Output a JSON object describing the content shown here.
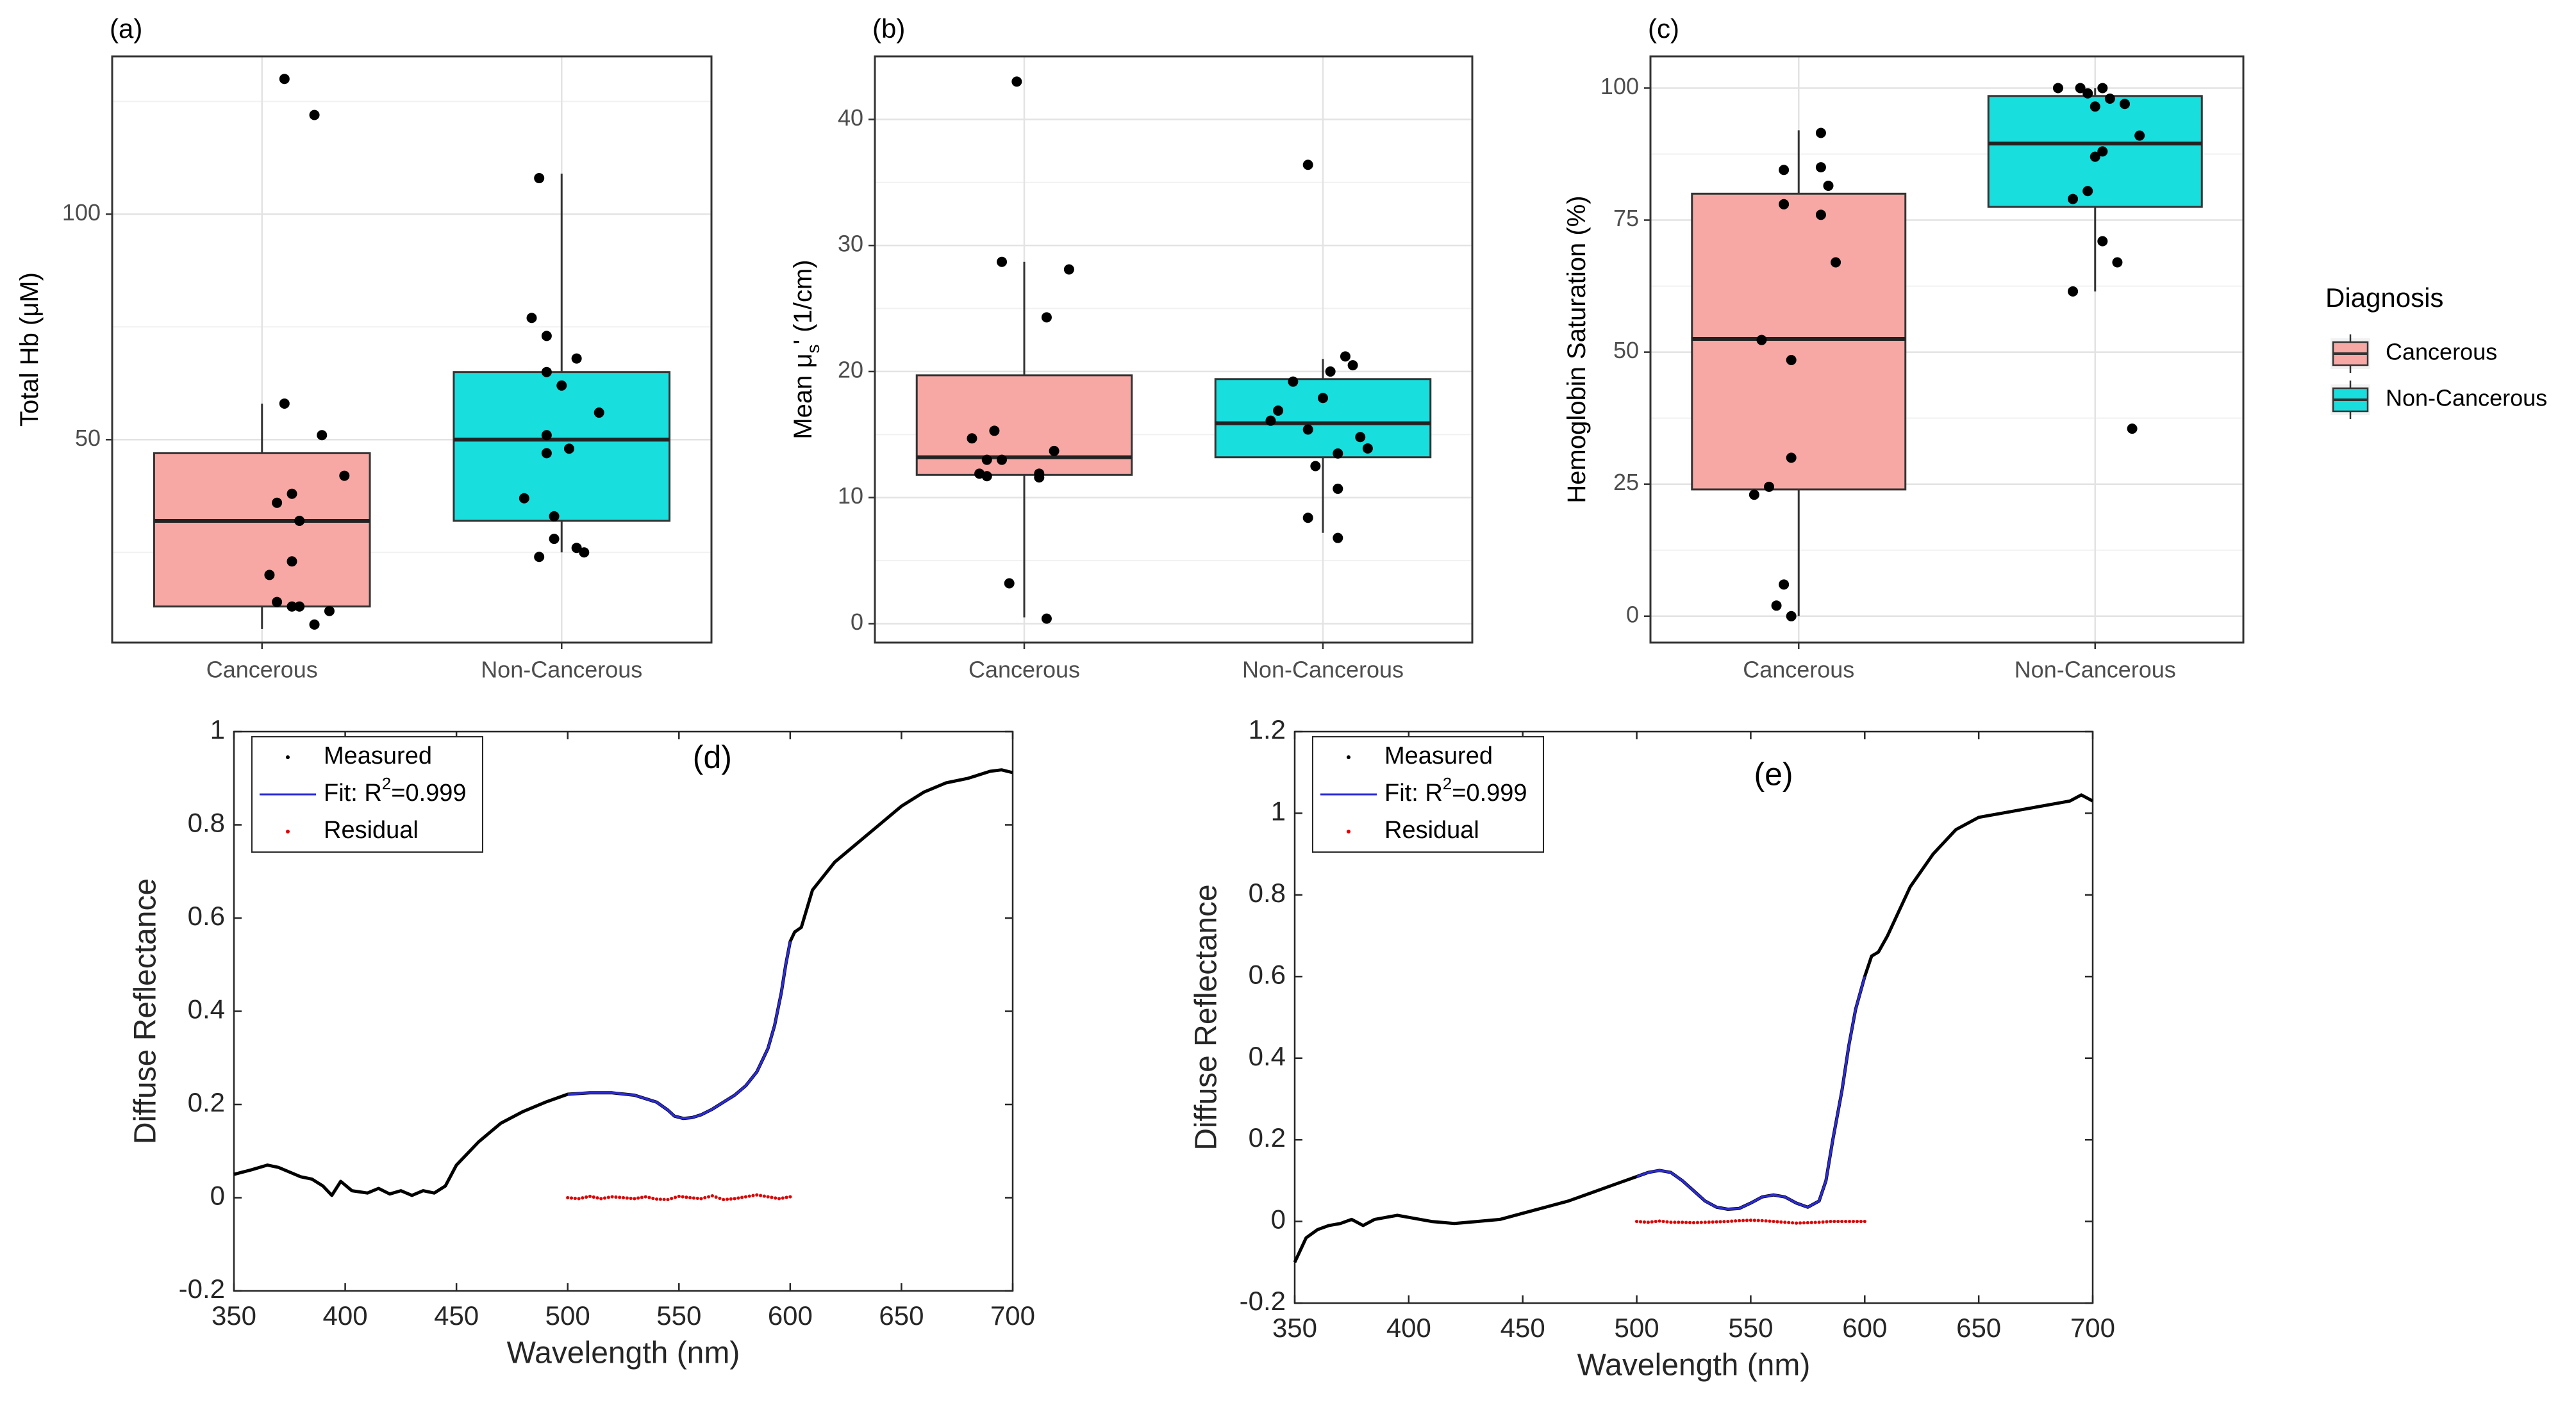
{
  "legend": {
    "title": "Diagnosis",
    "items": [
      {
        "label": "Cancerous",
        "color": "#F8A8A4"
      },
      {
        "label": "Non-Cancerous",
        "color": "#19DEDE"
      }
    ]
  },
  "chart_data": [
    {
      "type": "box",
      "panel": "(a)",
      "title": "(a)",
      "ylabel_main": "Total Hb (",
      "ylabel_unit": "μM",
      "ylabel_end": ")",
      "categories": [
        "Cancerous",
        "Non-Cancerous"
      ],
      "ylim": [
        5,
        135
      ],
      "yticks": [
        50,
        100
      ],
      "boxes": [
        {
          "q1": 13,
          "median": 32,
          "q3": 47,
          "lower": 8,
          "upper": 58
        },
        {
          "q1": 32,
          "median": 50,
          "q3": 65,
          "lower": 25,
          "upper": 109
        }
      ],
      "points": [
        [
          [
            0.15,
            130
          ],
          [
            0.35,
            122
          ],
          [
            0.15,
            58
          ],
          [
            0.4,
            51
          ],
          [
            0.55,
            42
          ],
          [
            0.2,
            38
          ],
          [
            0.1,
            36
          ],
          [
            0.25,
            32
          ],
          [
            0.2,
            23
          ],
          [
            0.05,
            20
          ],
          [
            0.1,
            14
          ],
          [
            0.2,
            13
          ],
          [
            0.25,
            13
          ],
          [
            0.45,
            12
          ],
          [
            0.35,
            9
          ]
        ],
        [
          [
            -0.15,
            108
          ],
          [
            -0.2,
            77
          ],
          [
            -0.1,
            73
          ],
          [
            0.1,
            68
          ],
          [
            -0.1,
            65
          ],
          [
            0,
            62
          ],
          [
            0.25,
            56
          ],
          [
            -0.1,
            51
          ],
          [
            0.05,
            48
          ],
          [
            -0.1,
            47
          ],
          [
            -0.25,
            37
          ],
          [
            -0.05,
            33
          ],
          [
            -0.05,
            28
          ],
          [
            0.1,
            26
          ],
          [
            0.15,
            25
          ],
          [
            -0.15,
            24
          ]
        ]
      ]
    },
    {
      "type": "box",
      "panel": "(b)",
      "title": "(b)",
      "ylabel_main": "Mean μ",
      "ylabel_sub": "s",
      "ylabel_end": "' (1/cm)",
      "categories": [
        "Cancerous",
        "Non-Cancerous"
      ],
      "ylim": [
        -1.5,
        45
      ],
      "yticks": [
        0,
        10,
        20,
        30,
        40
      ],
      "boxes": [
        {
          "q1": 11.8,
          "median": 13.2,
          "q3": 19.7,
          "lower": 0.5,
          "upper": 28.7
        },
        {
          "q1": 13.2,
          "median": 15.9,
          "q3": 19.4,
          "lower": 7.2,
          "upper": 21.0
        }
      ],
      "points": [
        [
          [
            -0.05,
            43
          ],
          [
            -0.15,
            28.7
          ],
          [
            0.3,
            28.1
          ],
          [
            0.15,
            24.3
          ],
          [
            -0.2,
            15.3
          ],
          [
            -0.35,
            14.7
          ],
          [
            -0.25,
            13
          ],
          [
            -0.15,
            13
          ],
          [
            0.2,
            13.7
          ],
          [
            0.1,
            11.9
          ],
          [
            -0.3,
            11.9
          ],
          [
            -0.25,
            11.7
          ],
          [
            0.1,
            11.6
          ],
          [
            -0.1,
            3.2
          ],
          [
            0.15,
            0.4
          ]
        ],
        [
          [
            -0.1,
            36.4
          ],
          [
            0.15,
            21.2
          ],
          [
            0.2,
            20.5
          ],
          [
            0.05,
            20.0
          ],
          [
            -0.2,
            19.2
          ],
          [
            0,
            17.9
          ],
          [
            -0.3,
            16.9
          ],
          [
            -0.35,
            16.1
          ],
          [
            -0.1,
            15.4
          ],
          [
            0.25,
            14.8
          ],
          [
            0.3,
            13.9
          ],
          [
            0.1,
            13.5
          ],
          [
            -0.05,
            12.5
          ],
          [
            0.1,
            10.7
          ],
          [
            -0.1,
            8.4
          ],
          [
            0.1,
            6.8
          ]
        ]
      ]
    },
    {
      "type": "box",
      "panel": "(c)",
      "title": "(c)",
      "ylabel_main": "Hemoglobin Saturation (%)",
      "categories": [
        "Cancerous",
        "Non-Cancerous"
      ],
      "ylim": [
        -5,
        106
      ],
      "yticks": [
        0,
        25,
        50,
        75,
        100
      ],
      "boxes": [
        {
          "q1": 24,
          "median": 52.5,
          "q3": 80,
          "lower": 0,
          "upper": 92
        },
        {
          "q1": 77.5,
          "median": 89.5,
          "q3": 98.5,
          "lower": 61.5,
          "upper": 100
        }
      ],
      "points": [
        [
          [
            0.15,
            91.5
          ],
          [
            -0.1,
            84.5
          ],
          [
            0.15,
            85
          ],
          [
            0.2,
            81.5
          ],
          [
            -0.1,
            78
          ],
          [
            0.15,
            76
          ],
          [
            0.25,
            67
          ],
          [
            -0.25,
            52.3
          ],
          [
            -0.05,
            48.5
          ],
          [
            -0.05,
            30
          ],
          [
            -0.2,
            24.5
          ],
          [
            -0.3,
            23
          ],
          [
            -0.1,
            6
          ],
          [
            -0.15,
            2
          ],
          [
            -0.05,
            0
          ]
        ],
        [
          [
            -0.25,
            100
          ],
          [
            -0.1,
            100
          ],
          [
            0.05,
            100
          ],
          [
            -0.05,
            99
          ],
          [
            0.1,
            98
          ],
          [
            0.2,
            97
          ],
          [
            0,
            96.5
          ],
          [
            0.3,
            91
          ],
          [
            0.05,
            88
          ],
          [
            0,
            87
          ],
          [
            -0.05,
            80.5
          ],
          [
            -0.15,
            79
          ],
          [
            0.05,
            71
          ],
          [
            0.15,
            67
          ],
          [
            -0.15,
            61.5
          ],
          [
            0.25,
            35.5
          ]
        ]
      ]
    },
    {
      "type": "line",
      "panel": "(d)",
      "title": "(d)",
      "xlabel": "Wavelength (nm)",
      "ylabel": "Diffuse Reflectance",
      "xlim": [
        350,
        700
      ],
      "ylim": [
        -0.2,
        1.0
      ],
      "xticks": [
        350,
        400,
        450,
        500,
        550,
        600,
        650,
        700
      ],
      "yticks": [
        -0.2,
        0,
        0.2,
        0.4,
        0.6,
        0.8,
        1
      ],
      "ytick_labels": [
        "-0.2",
        "0",
        "0.2",
        "0.4",
        "0.6",
        "0.8",
        "1"
      ],
      "legend": [
        "Measured",
        "Fit: R",
        "2",
        "=0.999",
        "Residual"
      ],
      "measured_x": [
        350,
        358,
        365,
        370,
        375,
        380,
        385,
        390,
        394,
        398,
        403,
        410,
        415,
        420,
        425,
        430,
        435,
        440,
        445,
        450,
        460,
        470,
        480,
        490,
        500,
        510,
        520,
        530,
        540,
        545,
        548,
        552,
        556,
        560,
        565,
        570,
        575,
        580,
        585,
        590,
        593,
        596,
        598,
        600,
        602,
        605,
        610,
        620,
        630,
        640,
        650,
        660,
        670,
        680,
        690,
        695,
        700
      ],
      "measured_y": [
        0.05,
        0.06,
        0.07,
        0.065,
        0.055,
        0.045,
        0.04,
        0.025,
        0.005,
        0.035,
        0.015,
        0.01,
        0.02,
        0.008,
        0.015,
        0.005,
        0.015,
        0.01,
        0.025,
        0.07,
        0.12,
        0.16,
        0.185,
        0.205,
        0.222,
        0.225,
        0.225,
        0.22,
        0.205,
        0.188,
        0.175,
        0.17,
        0.172,
        0.178,
        0.19,
        0.205,
        0.22,
        0.24,
        0.27,
        0.32,
        0.37,
        0.44,
        0.5,
        0.55,
        0.57,
        0.58,
        0.66,
        0.72,
        0.76,
        0.8,
        0.84,
        0.87,
        0.89,
        0.9,
        0.915,
        0.918,
        0.912
      ],
      "fit_x": [
        500,
        510,
        520,
        530,
        540,
        545,
        548,
        552,
        556,
        560,
        565,
        570,
        575,
        580,
        585,
        590,
        593,
        596,
        598,
        600
      ],
      "fit_y": [
        0.222,
        0.225,
        0.225,
        0.22,
        0.205,
        0.188,
        0.175,
        0.17,
        0.172,
        0.178,
        0.19,
        0.205,
        0.22,
        0.24,
        0.27,
        0.32,
        0.37,
        0.44,
        0.5,
        0.55
      ],
      "residual_x": [
        500,
        505,
        510,
        515,
        520,
        525,
        530,
        535,
        540,
        545,
        550,
        555,
        560,
        565,
        570,
        575,
        580,
        585,
        590,
        595,
        600
      ],
      "residual_y": [
        0,
        -0.002,
        0.003,
        -0.002,
        0.002,
        0,
        -0.002,
        0.002,
        -0.003,
        -0.004,
        0.003,
        0,
        -0.002,
        0.004,
        -0.004,
        -0.002,
        0.002,
        0.006,
        0.002,
        -0.002,
        0.002
      ]
    },
    {
      "type": "line",
      "panel": "(e)",
      "title": "(e)",
      "xlabel": "Wavelength (nm)",
      "ylabel": "Diffuse Reflectance",
      "xlim": [
        350,
        700
      ],
      "ylim": [
        -0.2,
        1.2
      ],
      "xticks": [
        350,
        400,
        450,
        500,
        550,
        600,
        650,
        700
      ],
      "yticks": [
        -0.2,
        0,
        0.2,
        0.4,
        0.6,
        0.8,
        1,
        1.2
      ],
      "ytick_labels": [
        "-0.2",
        "0",
        "0.2",
        "0.4",
        "0.6",
        "0.8",
        "1",
        "1.2"
      ],
      "legend": [
        "Measured",
        "Fit: R",
        "2",
        "=0.999",
        "Residual"
      ],
      "measured_x": [
        350,
        355,
        360,
        365,
        370,
        375,
        380,
        385,
        390,
        395,
        400,
        410,
        420,
        430,
        440,
        450,
        460,
        470,
        480,
        490,
        500,
        505,
        510,
        515,
        520,
        525,
        530,
        535,
        540,
        545,
        550,
        555,
        560,
        565,
        570,
        575,
        580,
        583,
        586,
        590,
        593,
        596,
        600,
        603,
        606,
        610,
        615,
        620,
        630,
        640,
        650,
        660,
        670,
        680,
        690,
        695,
        700
      ],
      "measured_y": [
        -0.1,
        -0.04,
        -0.02,
        -0.01,
        -0.005,
        0.005,
        -0.01,
        0.005,
        0.01,
        0.015,
        0.01,
        0,
        -0.005,
        0,
        0.005,
        0.02,
        0.035,
        0.05,
        0.07,
        0.09,
        0.11,
        0.12,
        0.125,
        0.12,
        0.1,
        0.075,
        0.05,
        0.035,
        0.03,
        0.032,
        0.045,
        0.06,
        0.065,
        0.06,
        0.045,
        0.035,
        0.05,
        0.1,
        0.2,
        0.32,
        0.43,
        0.52,
        0.6,
        0.65,
        0.66,
        0.7,
        0.76,
        0.82,
        0.9,
        0.96,
        0.99,
        1.0,
        1.01,
        1.02,
        1.03,
        1.045,
        1.03
      ],
      "fit_x": [
        500,
        505,
        510,
        515,
        520,
        525,
        530,
        535,
        540,
        545,
        550,
        555,
        560,
        565,
        570,
        575,
        580,
        583,
        586,
        590,
        593,
        596,
        600
      ],
      "fit_y": [
        0.11,
        0.12,
        0.125,
        0.12,
        0.1,
        0.075,
        0.05,
        0.035,
        0.03,
        0.032,
        0.045,
        0.06,
        0.065,
        0.06,
        0.045,
        0.035,
        0.05,
        0.1,
        0.2,
        0.32,
        0.43,
        0.52,
        0.6
      ],
      "residual_x": [
        500,
        505,
        510,
        515,
        520,
        525,
        530,
        535,
        540,
        545,
        550,
        555,
        560,
        565,
        570,
        575,
        580,
        585,
        590,
        595,
        600
      ],
      "residual_y": [
        0,
        -0.002,
        0.001,
        -0.002,
        -0.002,
        -0.003,
        -0.002,
        -0.001,
        0,
        0.002,
        0.003,
        0.002,
        0,
        -0.002,
        -0.004,
        -0.003,
        -0.002,
        0,
        0,
        0,
        0
      ]
    }
  ]
}
